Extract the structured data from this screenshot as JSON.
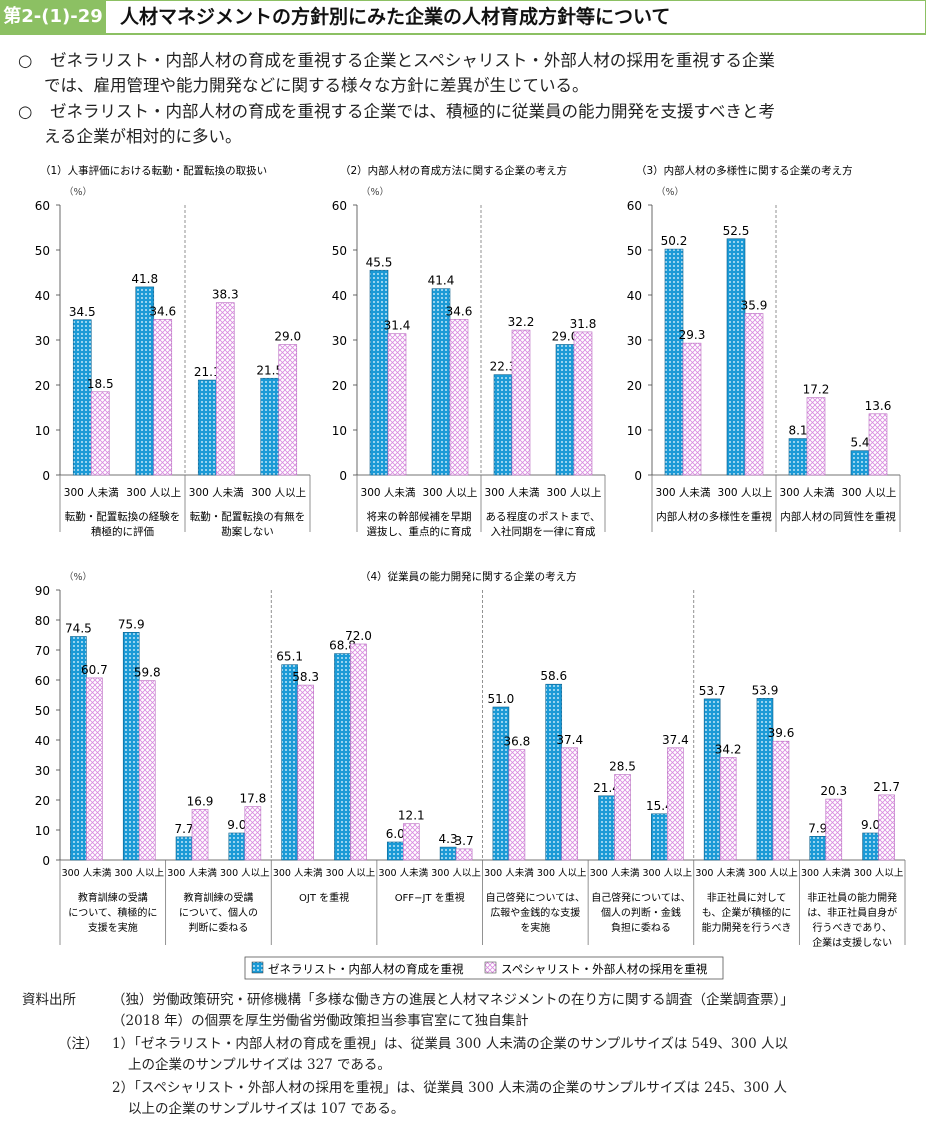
{
  "header": {
    "figure_no": "第2-(1)-29図",
    "title": "人材マネジメントの方針別にみた企業の人材育成方針等について"
  },
  "bullets": [
    {
      "mark": "○",
      "line1": "ゼネラリスト・内部人材の育成を重視する企業とスペシャリスト・外部人材の採用を重視する企業",
      "line2": "では、雇用管理や能力開発などに関する様々な方針に差異が生じている。"
    },
    {
      "mark": "○",
      "line1": "ゼネラリスト・内部人材の育成を重視する企業では、積極的に従業員の能力開発を支援すべきと考",
      "line2": "える企業が相対的に多い。"
    }
  ],
  "legend": {
    "series": [
      "ゼネラリスト・内部人材の育成を重視",
      "スペシャリスト・外部人材の採用を重視"
    ]
  },
  "colors": {
    "generalist": "#1b9ad6",
    "specialist": "#e3a6e6",
    "header": "#8cc063"
  },
  "chart_data": [
    {
      "type": "bar",
      "title": "（1）人事評価における転勤・配置転換の取扱い",
      "ylabel": "（%）",
      "ylim": [
        0,
        60
      ],
      "yticks": [
        0,
        10,
        20,
        30,
        40,
        50,
        60
      ],
      "subcategories": [
        "300 人未満",
        "300 人以上"
      ],
      "groups": [
        "転勤・配置転換の経験を\n積極的に評価",
        "転勤・配置転換の有無を\n勘案しない"
      ],
      "series": [
        {
          "name": "ゼネラリスト・内部人材の育成を重視",
          "values": [
            34.5,
            41.8,
            21.1,
            21.5
          ]
        },
        {
          "name": "スペシャリスト・外部人材の採用を重視",
          "values": [
            18.5,
            34.6,
            38.3,
            29.0
          ]
        }
      ],
      "value_labels": [
        [
          "34.5",
          "41.8",
          "21.1",
          "21.5"
        ],
        [
          "18.5",
          "34.6",
          "38.3",
          "29.0"
        ]
      ]
    },
    {
      "type": "bar",
      "title": "（2）内部人材の育成方法に関する企業の考え方",
      "ylabel": "（%）",
      "ylim": [
        0,
        60
      ],
      "yticks": [
        0,
        10,
        20,
        30,
        40,
        50,
        60
      ],
      "subcategories": [
        "300 人未満",
        "300 人以上"
      ],
      "groups": [
        "将来の幹部候補を早期\n選抜し、重点的に育成",
        "ある程度のポストまで、\n入社同期を一律に育成"
      ],
      "series": [
        {
          "name": "ゼネラリスト・内部人材の育成を重視",
          "values": [
            45.5,
            41.4,
            22.3,
            29.0
          ]
        },
        {
          "name": "スペシャリスト・外部人材の採用を重視",
          "values": [
            31.4,
            34.6,
            32.2,
            31.8
          ]
        }
      ],
      "value_labels": [
        [
          "45.5",
          "41.4",
          "22.3",
          "29.0"
        ],
        [
          "31.4",
          "34.6",
          "32.2",
          "31.8"
        ]
      ]
    },
    {
      "type": "bar",
      "title": "（3）内部人材の多様性に関する企業の考え方",
      "ylabel": "（%）",
      "ylim": [
        0,
        60
      ],
      "yticks": [
        0,
        10,
        20,
        30,
        40,
        50,
        60
      ],
      "subcategories": [
        "300 人未満",
        "300 人以上"
      ],
      "groups": [
        "内部人材の多様性を重視",
        "内部人材の同質性を重視"
      ],
      "series": [
        {
          "name": "ゼネラリスト・内部人材の育成を重視",
          "values": [
            50.2,
            52.5,
            8.1,
            5.4
          ]
        },
        {
          "name": "スペシャリスト・外部人材の採用を重視",
          "values": [
            29.3,
            35.9,
            17.2,
            13.6
          ]
        }
      ],
      "value_labels": [
        [
          "50.2",
          "52.5",
          "8.1",
          "5.4"
        ],
        [
          "29.3",
          "35.9",
          "17.2",
          "13.6"
        ]
      ]
    },
    {
      "type": "bar",
      "title": "（4）従業員の能力開発に関する企業の考え方",
      "ylabel": "（%）",
      "ylim": [
        0,
        90
      ],
      "yticks": [
        0,
        10,
        20,
        30,
        40,
        50,
        60,
        70,
        80,
        90
      ],
      "subcategories": [
        "300 人未満",
        "300 人以上"
      ],
      "groups": [
        "教育訓練の受講\nについて、積極的に\n支援を実施",
        "教育訓練の受講\nについて、個人の\n判断に委ねる",
        "OJT を重視",
        "OFF−JT を重視",
        "自己啓発については、\n広報や金銭的な支援\nを実施",
        "自己啓発については、\n個人の判断・金銭\n負担に委ねる",
        "非正社員に対して\nも、企業が積極的に\n能力開発を行うべき",
        "非正社員の能力開発\nは、非正社員自身が\n行うべきであり、\n企業は支援しない"
      ],
      "series": [
        {
          "name": "ゼネラリスト・内部人材の育成を重視",
          "values": [
            74.5,
            75.9,
            7.7,
            9.0,
            65.1,
            68.8,
            6.0,
            4.3,
            51.0,
            58.6,
            21.4,
            15.4,
            53.7,
            53.9,
            7.9,
            9.0
          ]
        },
        {
          "name": "スペシャリスト・外部人材の採用を重視",
          "values": [
            60.7,
            59.8,
            16.9,
            17.8,
            58.3,
            72.0,
            12.1,
            3.7,
            36.8,
            37.4,
            28.5,
            37.4,
            34.2,
            39.6,
            20.3,
            21.7
          ]
        }
      ],
      "value_labels": [
        [
          "74.5",
          "75.9",
          "7.7",
          "9.0",
          "65.1",
          "68.8",
          "6.0",
          "4.3",
          "51.0",
          "58.6",
          "21.4",
          "15.4",
          "53.7",
          "53.9",
          "7.9",
          "9.0"
        ],
        [
          "60.7",
          "59.8",
          "16.9",
          "17.8",
          "58.3",
          "72.0",
          "12.1",
          "3.7",
          "36.8",
          "37.4",
          "28.5",
          "37.4",
          "34.2",
          "39.6",
          "20.3",
          "21.7"
        ]
      ]
    }
  ],
  "source": {
    "label": "資料出所",
    "line1": "（独）労働政策研究・研修機構「多様な働き方の進展と人材マネジメントの在り方に関する調査（企業調査票）」",
    "line2": "（2018 年）の個票を厚生労働省労働政策担当参事官室にて独自集計"
  },
  "notes": {
    "label": "（注）",
    "n1a": "1）「ゼネラリスト・内部人材の育成を重視」は、従業員 300 人未満の企業のサンプルサイズは 549、300 人以",
    "n1b": "上の企業のサンプルサイズは 327 である。",
    "n2a": "2）「スペシャリスト・外部人材の採用を重視」は、従業員 300 人未満の企業のサンプルサイズは 245、300 人",
    "n2b": "以上の企業のサンプルサイズは 107 である。"
  }
}
